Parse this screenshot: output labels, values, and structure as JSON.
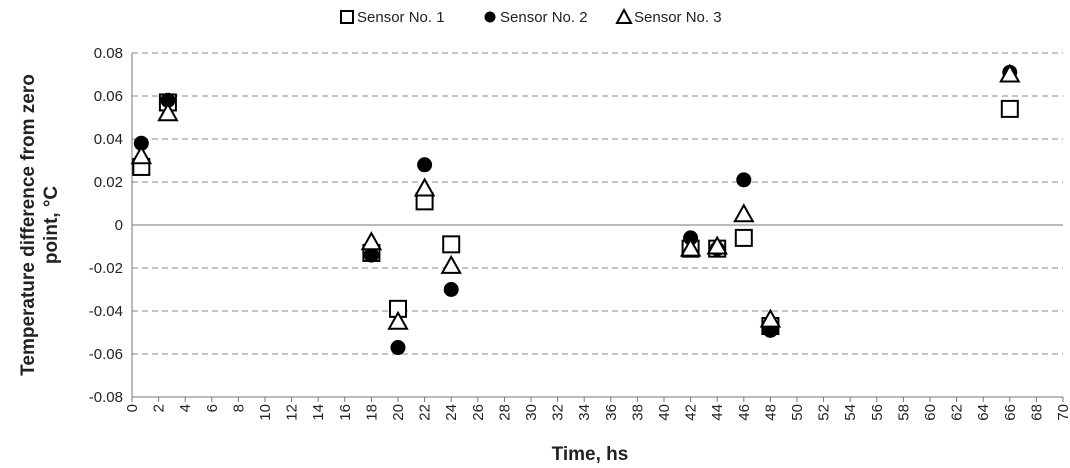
{
  "chart_data": {
    "type": "scatter",
    "xlabel": "Time, hs",
    "ylabel": "Temperature difference from zero point, °C",
    "xlim": [
      0,
      70
    ],
    "ylim": [
      -0.08,
      0.08
    ],
    "x_ticks": [
      0,
      2,
      4,
      6,
      8,
      10,
      12,
      14,
      16,
      18,
      20,
      22,
      24,
      26,
      28,
      30,
      32,
      34,
      36,
      38,
      40,
      42,
      44,
      46,
      48,
      50,
      52,
      54,
      56,
      58,
      60,
      62,
      64,
      66,
      68,
      70
    ],
    "y_ticks": [
      {
        "value": 0.08,
        "label": "0.08"
      },
      {
        "value": 0.06,
        "label": "0.06"
      },
      {
        "value": 0.04,
        "label": "0.04"
      },
      {
        "value": 0.02,
        "label": "0.02"
      },
      {
        "value": 0,
        "label": "0"
      },
      {
        "value": -0.02,
        "label": "-0.02"
      },
      {
        "value": -0.04,
        "label": "-0.04"
      },
      {
        "value": -0.06,
        "label": "-0.06"
      },
      {
        "value": -0.08,
        "label": "-0.08"
      }
    ],
    "grid": "horizontal-dashed",
    "legend_position": "top",
    "series": [
      {
        "name": "Sensor No. 1",
        "marker": "open-square",
        "x": [
          0.7,
          2.7,
          18,
          20,
          22,
          24,
          42,
          44,
          46,
          48,
          66
        ],
        "y": [
          0.027,
          0.057,
          -0.013,
          -0.039,
          0.011,
          -0.009,
          -0.011,
          -0.011,
          -0.006,
          -0.047,
          0.054
        ]
      },
      {
        "name": "Sensor No. 2",
        "marker": "filled-circle",
        "x": [
          0.7,
          2.7,
          18,
          20,
          22,
          24,
          42,
          44,
          46,
          48,
          66
        ],
        "y": [
          0.038,
          0.058,
          -0.014,
          -0.057,
          0.028,
          -0.03,
          -0.006,
          -0.011,
          0.021,
          -0.049,
          0.071
        ]
      },
      {
        "name": "Sensor No. 3",
        "marker": "open-triangle",
        "x": [
          0.7,
          2.7,
          18,
          20,
          22,
          24,
          42,
          44,
          46,
          48,
          66
        ],
        "y": [
          0.032,
          0.052,
          -0.008,
          -0.045,
          0.017,
          -0.019,
          -0.011,
          -0.01,
          0.005,
          -0.044,
          0.07
        ]
      }
    ]
  }
}
